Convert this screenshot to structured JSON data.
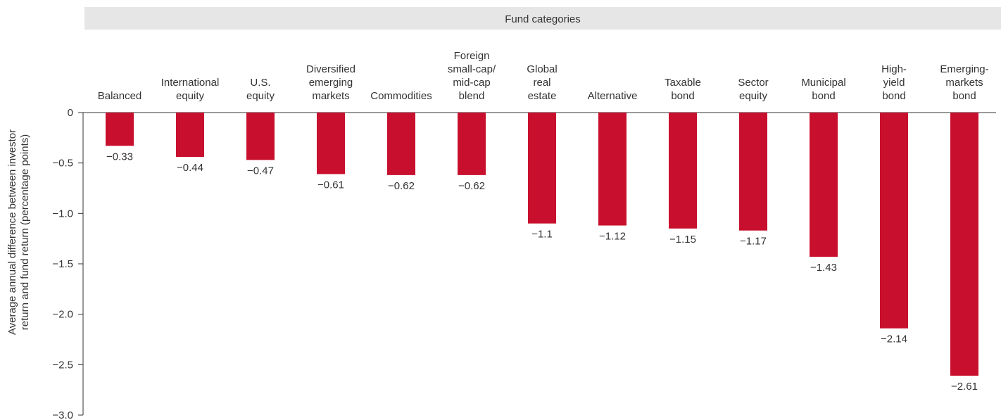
{
  "chart_data": {
    "type": "bar",
    "header": "Fund categories",
    "y_label": [
      "Average annual difference between investor",
      "return and fund return (percentage points)"
    ],
    "categories": [
      "Balanced",
      "International\nequity",
      "U.S.\nequity",
      "Diversified\nemerging\nmarkets",
      "Commodities",
      "Foreign\nsmall-cap/\nmid-cap\nblend",
      "Global\nreal\nestate",
      "Alternative",
      "Taxable\nbond",
      "Sector\nequity",
      "Municipal\nbond",
      "High-\nyield\nbond",
      "Emerging-\nmarkets\nbond"
    ],
    "values": [
      -0.33,
      -0.44,
      -0.47,
      -0.61,
      -0.62,
      -0.62,
      -1.1,
      -1.12,
      -1.15,
      -1.17,
      -1.43,
      -2.14,
      -2.61
    ],
    "value_labels": [
      "−0.33",
      "−0.44",
      "−0.47",
      "−0.61",
      "−0.62",
      "−0.62",
      "−1.1",
      "−1.12",
      "−1.15",
      "−1.17",
      "−1.43",
      "−2.14",
      "−2.61"
    ],
    "color": "#c8102e",
    "ylim": [
      -3.0,
      0
    ],
    "yticks": [
      0,
      {
        "value": -0.5,
        "label": "−0.5"
      },
      {
        "value": -1.0,
        "label": "−1.0"
      },
      {
        "value": -1.5,
        "label": "−1.5"
      },
      {
        "value": -2.0,
        "label": "−2.0"
      },
      {
        "value": -2.5,
        "label": "−2.5"
      },
      {
        "value": -3.0,
        "label": "−3.0"
      }
    ]
  }
}
